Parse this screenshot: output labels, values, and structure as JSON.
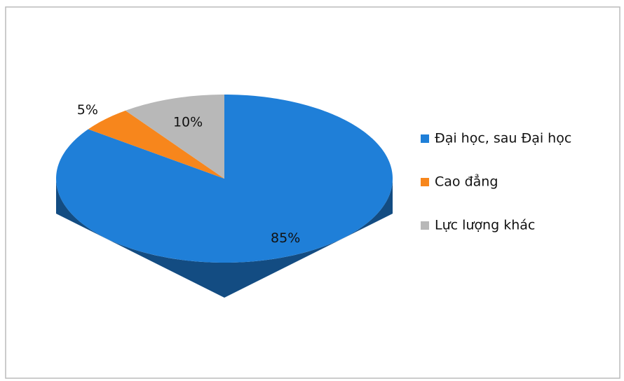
{
  "chart_data": {
    "type": "pie",
    "categories": [
      "Đại học, sau Đại học",
      "Cao đẳng",
      "Lực lượng khác"
    ],
    "values": [
      85,
      5,
      10
    ],
    "value_labels": [
      "85%",
      "5%",
      "10%"
    ],
    "colors": [
      "#1f7fd8",
      "#f7861c",
      "#b8b8b8"
    ],
    "legend": "right"
  }
}
